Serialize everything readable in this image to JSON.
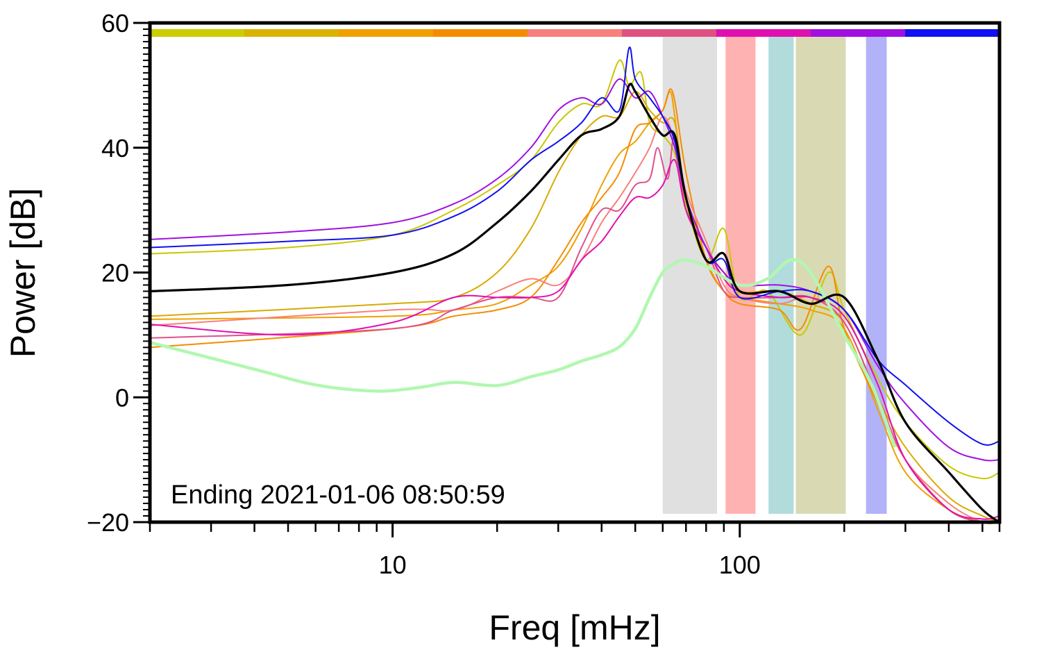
{
  "chart_data": {
    "type": "line",
    "xscale": "log",
    "xlabel": "Freq [mHz]",
    "ylabel": "Power [dB]",
    "xlim": [
      2,
      560
    ],
    "ylim": [
      -20,
      60
    ],
    "xticks_labeled": [
      10,
      100
    ],
    "xtick_labels": [
      "10",
      "100"
    ],
    "yticks": [
      -20,
      0,
      20,
      40,
      60
    ],
    "ytick_labels": [
      "−20",
      "0",
      "20",
      "40",
      "60"
    ],
    "annotation": "Ending 2021-01-06 08:50:59",
    "bands": [
      {
        "x0": 60,
        "x1": 86,
        "color": "#e0e0e0"
      },
      {
        "x0": 91,
        "x1": 111,
        "color": "#ffb2b2"
      },
      {
        "x0": 121,
        "x1": 143,
        "color": "#b2dcdc"
      },
      {
        "x0": 145,
        "x1": 202,
        "color": "#d9d9b4"
      },
      {
        "x0": 231,
        "x1": 265,
        "color": "#b2b2f8"
      }
    ],
    "time_bar_colors": [
      "#cccc00",
      "#d9b300",
      "#f0a000",
      "#f58c00",
      "#f8807a",
      "#e05080",
      "#e010b0",
      "#a010e0",
      "#1010f0"
    ],
    "series": [
      {
        "name": "s1",
        "color": "#c8c800",
        "width": 2,
        "x": [
          2,
          5,
          10,
          15,
          20,
          25,
          30,
          35,
          40,
          45,
          48,
          52,
          55,
          60,
          65,
          70,
          80,
          90,
          100,
          120,
          150,
          180,
          200,
          250,
          300,
          400,
          500,
          560
        ],
        "y": [
          23,
          24,
          26,
          30,
          34,
          38,
          44,
          47,
          47,
          54,
          50,
          52,
          44,
          42,
          39,
          31,
          22,
          27,
          16,
          17,
          10,
          20,
          14,
          3,
          -4,
          -11,
          -13,
          -12
        ]
      },
      {
        "name": "s2",
        "color": "#d8aa00",
        "width": 2,
        "x": [
          2,
          10,
          15,
          20,
          25,
          30,
          35,
          40,
          45,
          50,
          55,
          60,
          65,
          70,
          80,
          90,
          100,
          130,
          160,
          200,
          250,
          300,
          400,
          500,
          560
        ],
        "y": [
          13,
          15,
          16,
          20,
          27,
          36,
          42,
          45,
          45,
          49,
          46,
          44,
          44,
          32,
          24,
          20,
          17,
          17,
          15,
          12,
          0,
          -8,
          -16,
          -19,
          -20
        ]
      },
      {
        "name": "s3",
        "color": "#f0a000",
        "width": 2,
        "x": [
          2,
          10,
          15,
          20,
          25,
          30,
          35,
          40,
          45,
          50,
          55,
          60,
          63,
          65,
          70,
          80,
          90,
          100,
          130,
          160,
          200,
          250,
          300,
          400,
          500,
          560
        ],
        "y": [
          12.5,
          13,
          14,
          15,
          18,
          21,
          27,
          34,
          39,
          41,
          44,
          46,
          49,
          45,
          32,
          22,
          17,
          16,
          15,
          14,
          11,
          -2,
          -12,
          -18,
          -20,
          -20
        ]
      },
      {
        "name": "s4",
        "color": "#f58c00",
        "width": 2,
        "x": [
          2,
          10,
          15,
          20,
          25,
          30,
          35,
          40,
          45,
          50,
          55,
          60,
          64,
          70,
          80,
          90,
          100,
          130,
          150,
          180,
          200,
          250,
          300,
          400,
          500,
          560
        ],
        "y": [
          8,
          11,
          13,
          14,
          16,
          22,
          28,
          32,
          36,
          43,
          44,
          46,
          49,
          36,
          22,
          17,
          15,
          14,
          11,
          21,
          11,
          -1,
          -10,
          -18,
          -20,
          -20
        ]
      },
      {
        "name": "s5",
        "color": "#f8807a",
        "width": 2,
        "x": [
          2,
          10,
          15,
          20,
          25,
          30,
          35,
          40,
          45,
          50,
          55,
          60,
          65,
          70,
          80,
          90,
          100,
          130,
          160,
          200,
          250,
          300,
          400,
          500,
          560
        ],
        "y": [
          11.5,
          14,
          14,
          17,
          19,
          18,
          22,
          28,
          32,
          36,
          40,
          45,
          41,
          33,
          25,
          18,
          16,
          15,
          16,
          12,
          0,
          -10,
          -17,
          -20,
          -20
        ]
      },
      {
        "name": "s6",
        "color": "#e0508a",
        "width": 2,
        "x": [
          2,
          10,
          15,
          20,
          25,
          30,
          35,
          40,
          45,
          50,
          55,
          58,
          62,
          65,
          70,
          80,
          90,
          100,
          130,
          160,
          200,
          250,
          300,
          400,
          500,
          560
        ],
        "y": [
          9.5,
          11,
          14,
          16,
          16,
          16,
          24,
          30,
          30,
          34,
          35,
          40,
          35,
          42,
          30,
          24,
          17,
          16,
          16,
          16,
          12,
          0,
          -10,
          -18,
          -20,
          -20
        ]
      },
      {
        "name": "s7",
        "color": "#e010b0",
        "width": 2,
        "x": [
          2,
          5,
          10,
          15,
          20,
          25,
          30,
          35,
          40,
          45,
          50,
          55,
          60,
          65,
          70,
          80,
          90,
          100,
          130,
          160,
          200,
          250,
          300,
          400,
          500,
          560
        ],
        "y": [
          11.7,
          10,
          12,
          16,
          16,
          16,
          17,
          22,
          25,
          29,
          32,
          32,
          34,
          38,
          30,
          24,
          19,
          17,
          16,
          16,
          13,
          2,
          -10,
          -18,
          -19.5,
          -19
        ]
      },
      {
        "name": "s8",
        "color": "#a010e0",
        "width": 2,
        "x": [
          2,
          5,
          10,
          15,
          20,
          25,
          30,
          35,
          40,
          45,
          50,
          55,
          60,
          65,
          70,
          80,
          90,
          100,
          130,
          160,
          200,
          250,
          300,
          400,
          500,
          560
        ],
        "y": [
          25.3,
          26.5,
          28,
          31,
          35,
          40,
          46,
          48,
          47,
          51,
          48,
          49,
          45,
          40,
          32,
          24,
          20,
          18,
          18,
          17,
          14,
          5,
          -1,
          -8,
          -10,
          -10
        ]
      },
      {
        "name": "s9",
        "color": "#1010f0",
        "width": 2,
        "x": [
          2,
          5,
          10,
          15,
          20,
          25,
          30,
          35,
          40,
          45,
          48,
          50,
          55,
          60,
          65,
          70,
          80,
          90,
          100,
          130,
          160,
          200,
          250,
          300,
          400,
          500,
          560
        ],
        "y": [
          24,
          25,
          26,
          29,
          33,
          38,
          41,
          44,
          48,
          46,
          56,
          51,
          48,
          45,
          41,
          32,
          22,
          22,
          16,
          17,
          17,
          14,
          6,
          2,
          -4,
          -7.5,
          -7
        ]
      },
      {
        "name": "median",
        "color": "#000000",
        "width": 3.2,
        "x": [
          2,
          5,
          10,
          15,
          20,
          25,
          30,
          35,
          40,
          45,
          48,
          50,
          55,
          60,
          65,
          70,
          80,
          90,
          100,
          130,
          160,
          200,
          250,
          300,
          400,
          500,
          560
        ],
        "y": [
          17,
          18,
          20,
          23,
          28,
          33,
          38,
          42,
          43,
          45,
          50,
          49,
          45,
          42,
          42,
          32,
          22,
          23,
          17,
          17,
          15,
          16,
          6,
          -4,
          -12,
          -18,
          -20
        ]
      },
      {
        "name": "noise",
        "color": "#b0f8b0",
        "width": 4.5,
        "x": [
          2,
          4,
          6,
          9,
          12,
          15,
          20,
          25,
          30,
          35,
          40,
          45,
          50,
          55,
          60,
          65,
          70,
          80,
          100,
          120,
          140,
          160,
          200,
          240,
          280
        ],
        "y": [
          8.8,
          4.5,
          2,
          1,
          1.6,
          2.4,
          1.9,
          3.3,
          4.4,
          5.8,
          6.8,
          8.1,
          11,
          16,
          20,
          21.5,
          22,
          21,
          18,
          19,
          22,
          20,
          10,
          2,
          -8
        ]
      }
    ]
  }
}
